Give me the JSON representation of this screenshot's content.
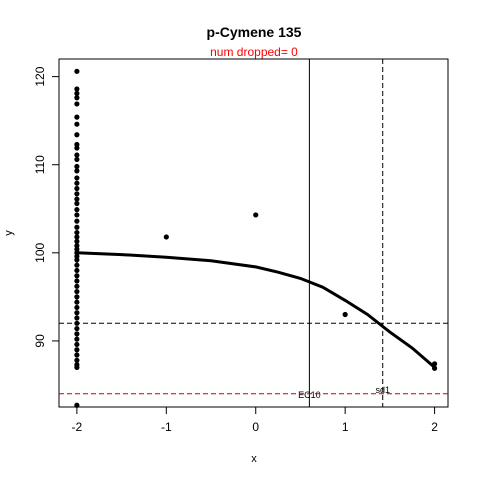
{
  "chart_data": {
    "type": "scatter",
    "title": "p-Cymene 135",
    "subtitle": "num dropped= 0",
    "subtitle_color": "#ff0000",
    "xlabel": "x",
    "ylabel": "y",
    "xlim": [
      -2.2,
      2.15
    ],
    "ylim": [
      82.5,
      122
    ],
    "xticks": [
      -2,
      -1,
      0,
      1,
      2
    ],
    "yticks": [
      90,
      100,
      110,
      120
    ],
    "points": [
      {
        "x": -2,
        "y": 120.6
      },
      {
        "x": -2,
        "y": 118.6
      },
      {
        "x": -2,
        "y": 118.1
      },
      {
        "x": -2,
        "y": 117.6
      },
      {
        "x": -2,
        "y": 116.9
      },
      {
        "x": -2,
        "y": 115.4
      },
      {
        "x": -2,
        "y": 114.6
      },
      {
        "x": -2,
        "y": 113.4
      },
      {
        "x": -2,
        "y": 112.3
      },
      {
        "x": -2,
        "y": 111.9
      },
      {
        "x": -2,
        "y": 111.1
      },
      {
        "x": -2,
        "y": 110.6
      },
      {
        "x": -2,
        "y": 109.8
      },
      {
        "x": -2,
        "y": 109.3
      },
      {
        "x": -2,
        "y": 108.5
      },
      {
        "x": -2,
        "y": 107.9
      },
      {
        "x": -2,
        "y": 107.3
      },
      {
        "x": -2,
        "y": 106.7
      },
      {
        "x": -2,
        "y": 106.1
      },
      {
        "x": -2,
        "y": 105.6
      },
      {
        "x": -2,
        "y": 104.9
      },
      {
        "x": -2,
        "y": 104.3
      },
      {
        "x": -2,
        "y": 103.6
      },
      {
        "x": -2,
        "y": 102.9
      },
      {
        "x": -2,
        "y": 102.3
      },
      {
        "x": -2,
        "y": 101.8
      },
      {
        "x": -2,
        "y": 101.3
      },
      {
        "x": -2,
        "y": 100.8
      },
      {
        "x": -2,
        "y": 100.4
      },
      {
        "x": -2,
        "y": 100.0
      },
      {
        "x": -2,
        "y": 99.6
      },
      {
        "x": -2,
        "y": 99.2
      },
      {
        "x": -2,
        "y": 98.6
      },
      {
        "x": -2,
        "y": 98.0
      },
      {
        "x": -2,
        "y": 97.4
      },
      {
        "x": -2,
        "y": 96.8
      },
      {
        "x": -2,
        "y": 96.2
      },
      {
        "x": -2,
        "y": 95.6
      },
      {
        "x": -2,
        "y": 95.0
      },
      {
        "x": -2,
        "y": 94.4
      },
      {
        "x": -2,
        "y": 93.8
      },
      {
        "x": -2,
        "y": 93.2
      },
      {
        "x": -2,
        "y": 92.6
      },
      {
        "x": -2,
        "y": 92.0
      },
      {
        "x": -2,
        "y": 91.4
      },
      {
        "x": -2,
        "y": 90.8
      },
      {
        "x": -2,
        "y": 90.2
      },
      {
        "x": -2,
        "y": 89.6
      },
      {
        "x": -2,
        "y": 89.0
      },
      {
        "x": -2,
        "y": 88.4
      },
      {
        "x": -2,
        "y": 87.8
      },
      {
        "x": -2,
        "y": 87.3
      },
      {
        "x": -2,
        "y": 87.0
      },
      {
        "x": -2,
        "y": 82.7
      },
      {
        "x": -1,
        "y": 101.8
      },
      {
        "x": 0,
        "y": 104.3
      },
      {
        "x": 1,
        "y": 93.0
      },
      {
        "x": 2,
        "y": 87.4
      },
      {
        "x": 2,
        "y": 86.9
      }
    ],
    "fitted_curve": {
      "x": [
        -2,
        -1.5,
        -1,
        -0.5,
        0,
        0.25,
        0.5,
        0.75,
        1,
        1.25,
        1.5,
        1.75,
        2
      ],
      "y": [
        100.0,
        99.8,
        99.5,
        99.1,
        98.4,
        97.8,
        97.1,
        96.1,
        94.6,
        93.0,
        91.0,
        89.2,
        87.0
      ]
    },
    "reference_lines": [
      {
        "orientation": "vertical",
        "x": 0.6,
        "style": "solid",
        "color": "#000000",
        "label": "EC10"
      },
      {
        "orientation": "vertical",
        "x": 1.42,
        "style": "dashed",
        "color": "#000000",
        "label": "sd1"
      },
      {
        "orientation": "horizontal",
        "y": 92.0,
        "style": "dashed",
        "color": "#000000"
      },
      {
        "orientation": "horizontal",
        "y": 84.0,
        "style": "dashed",
        "color": "#cc0000"
      }
    ],
    "grid": false,
    "legend": "none"
  }
}
